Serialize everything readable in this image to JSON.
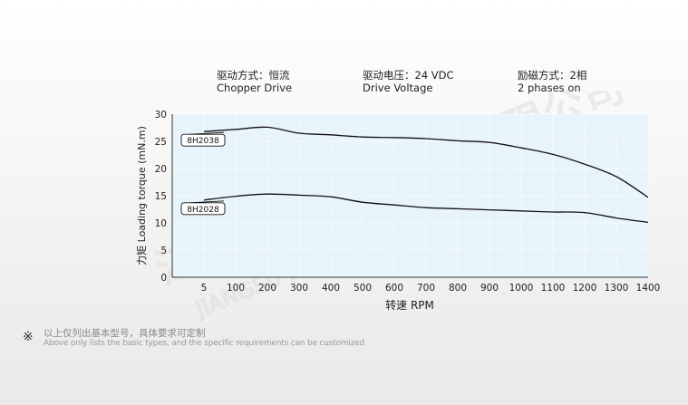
{
  "params": [
    {
      "cn": "驱动方式：恒流",
      "en": "Chopper Drive"
    },
    {
      "cn": "驱动电压：24 VDC",
      "en": "Drive Voltage"
    },
    {
      "cn": "励磁方式：2相",
      "en": "2 phases on"
    }
  ],
  "note": {
    "mark": "※",
    "cn": "以上仅列出基本型号，具体要求可定制",
    "en": "Above only lists the basic types, and the specific requirements can be customized"
  },
  "watermark": {
    "cn": "江苏雷利电机股份有限公司",
    "en": "JIANGSU LEILI MOTOR CO.,LTD"
  },
  "colors": {
    "plot_bg": "#e8f4fb",
    "grid": "#ffffff",
    "line": "#111111"
  },
  "chart_data": {
    "type": "line",
    "xlabel": "转速 RPM",
    "ylabel": "力矩 Loading torque (mN.m)",
    "x_ticks": [
      "5",
      "100",
      "200",
      "300",
      "400",
      "500",
      "600",
      "700",
      "800",
      "900",
      "1000",
      "1100",
      "1200",
      "1300",
      "1400"
    ],
    "ylim": [
      0,
      30
    ],
    "y_ticks": [
      0,
      5,
      10,
      15,
      20,
      25,
      30
    ],
    "grid": true,
    "series": [
      {
        "name": "8H2038",
        "x": [
          5,
          100,
          200,
          300,
          400,
          500,
          600,
          700,
          800,
          900,
          1000,
          1100,
          1200,
          1300,
          1400
        ],
        "y": [
          26.8,
          27.2,
          27.6,
          26.5,
          26.2,
          25.8,
          25.7,
          25.5,
          25.1,
          24.8,
          23.8,
          22.6,
          20.8,
          18.5,
          14.7
        ]
      },
      {
        "name": "8H2028",
        "x": [
          5,
          100,
          200,
          300,
          400,
          500,
          600,
          700,
          800,
          900,
          1000,
          1100,
          1200,
          1300,
          1400
        ],
        "y": [
          14.2,
          14.9,
          15.3,
          15.1,
          14.8,
          13.8,
          13.3,
          12.8,
          12.6,
          12.4,
          12.2,
          12.0,
          11.9,
          10.9,
          10.1
        ]
      }
    ]
  }
}
